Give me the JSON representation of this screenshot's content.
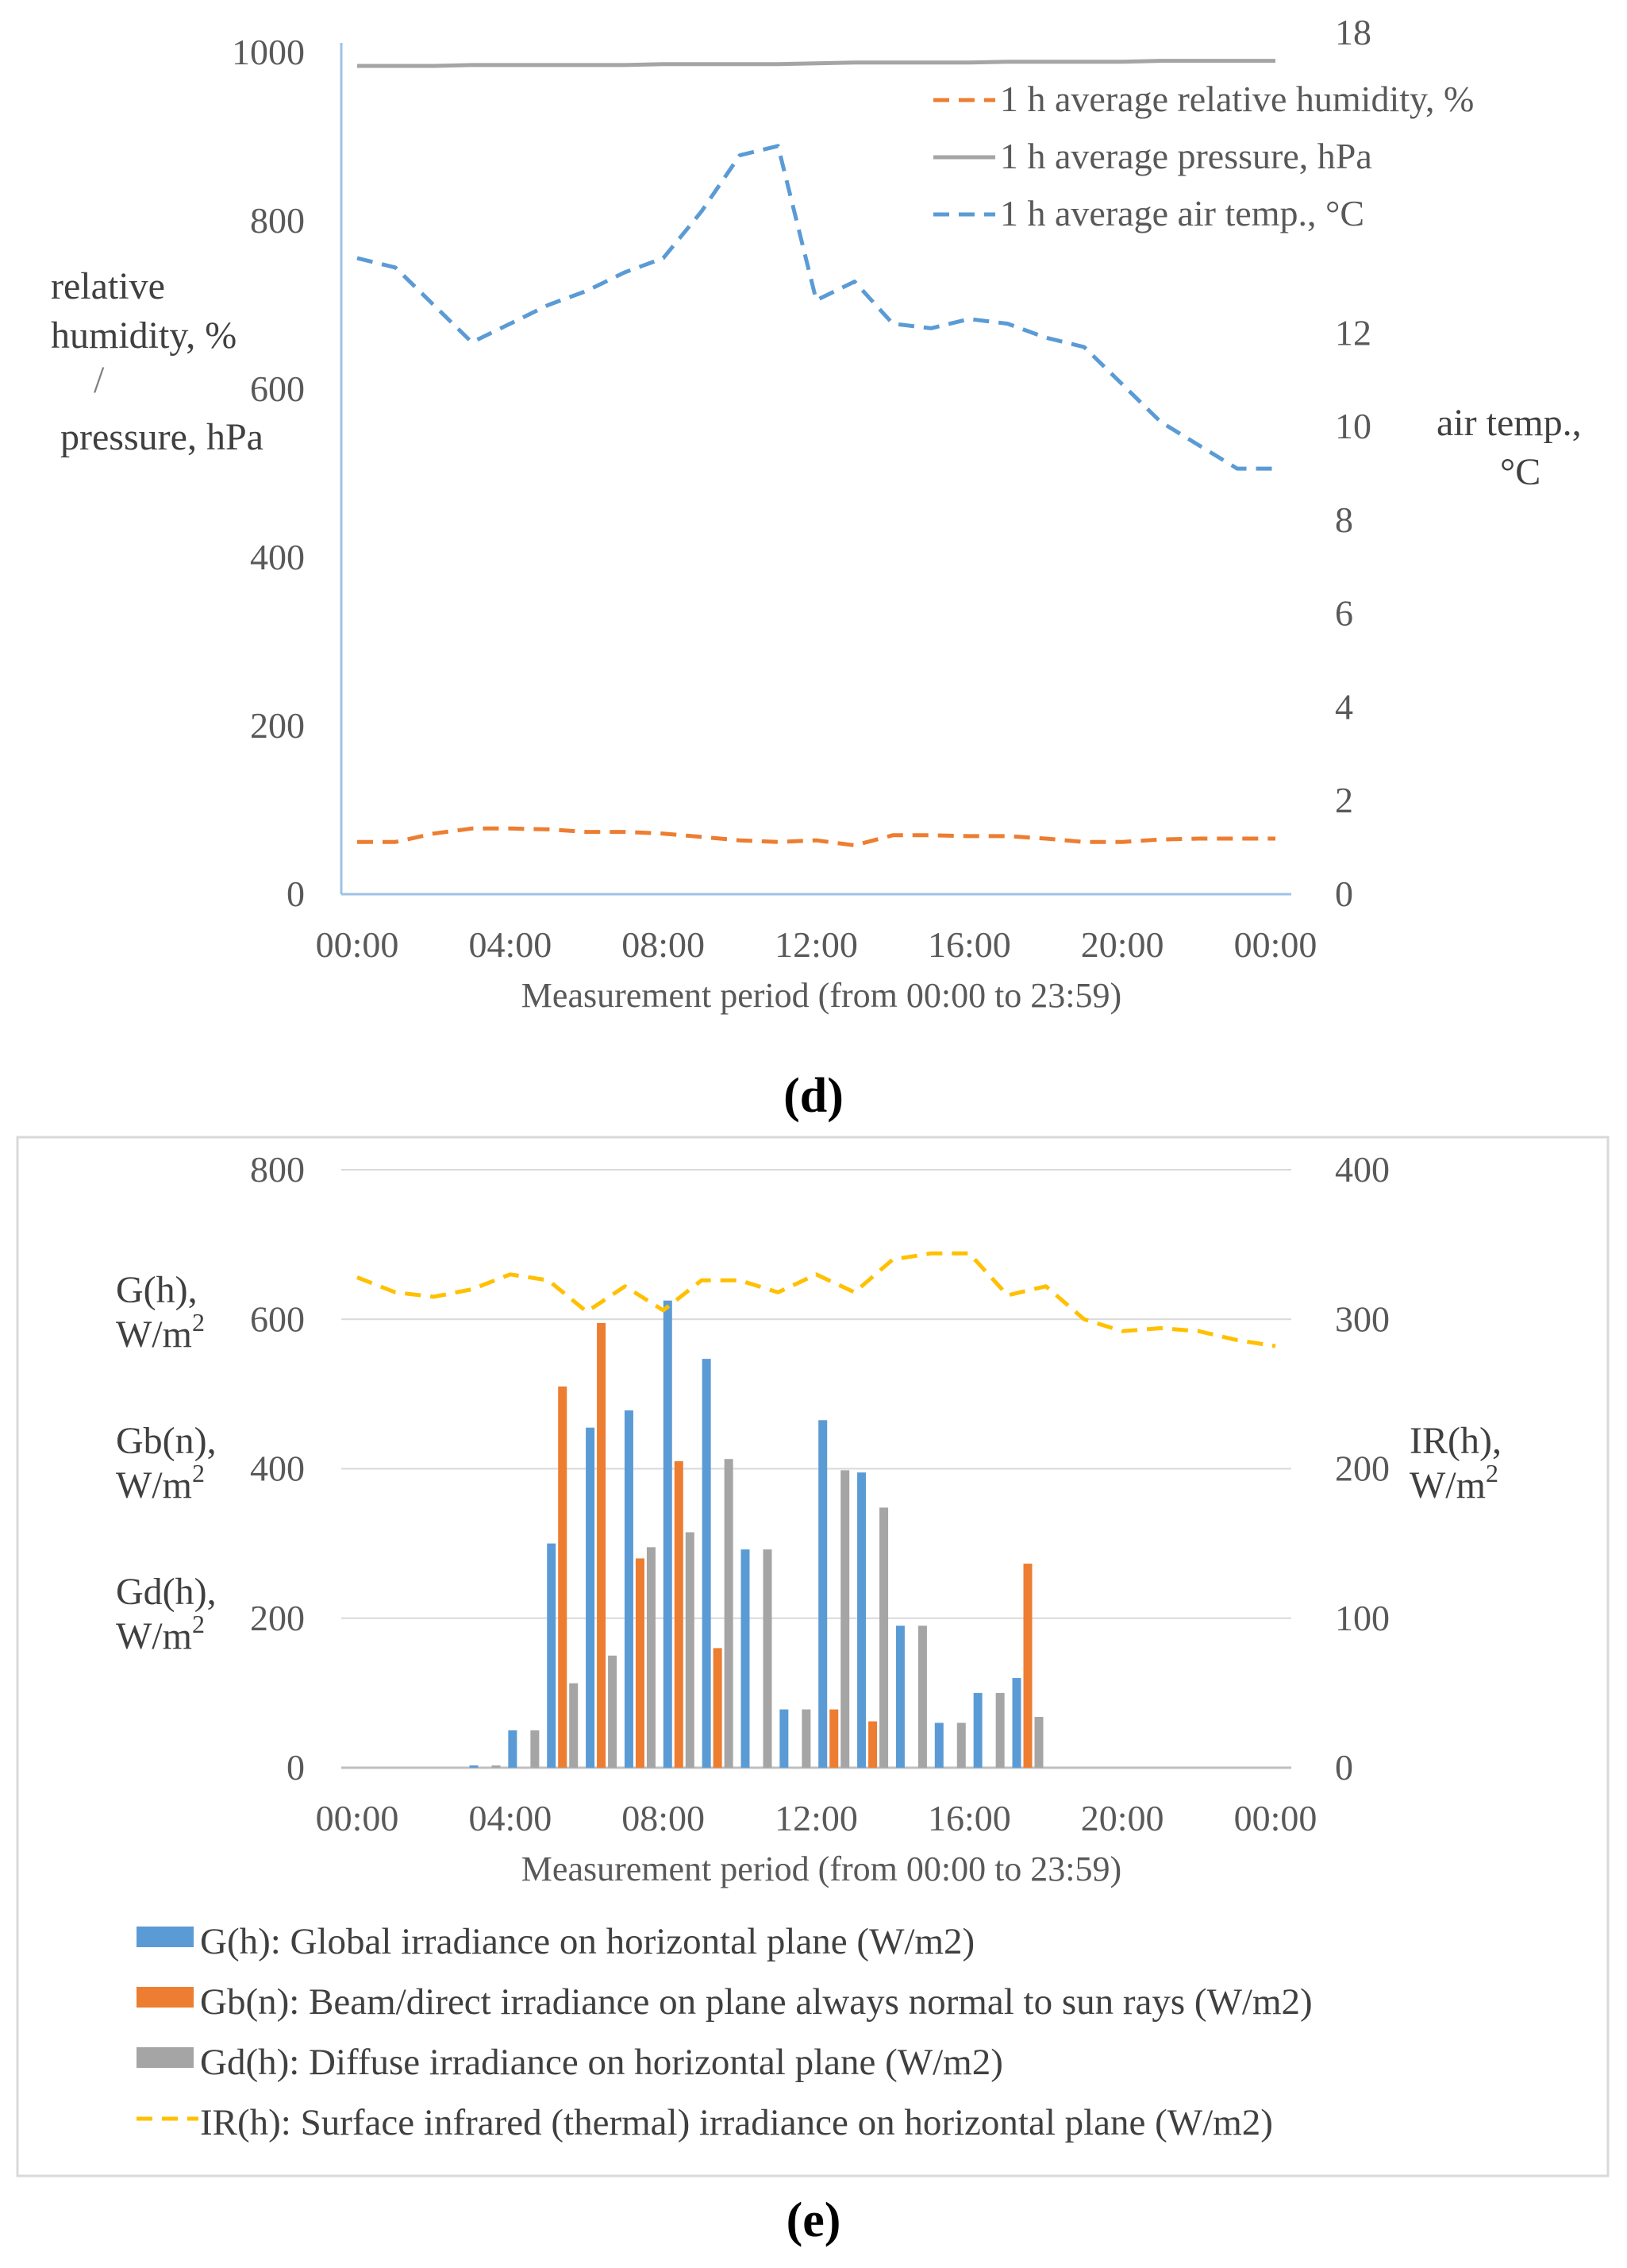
{
  "chart_data": [
    {
      "panel": "d",
      "type": "line",
      "x": [
        "00:00",
        "01:00",
        "02:00",
        "03:00",
        "04:00",
        "05:00",
        "06:00",
        "07:00",
        "08:00",
        "09:00",
        "10:00",
        "11:00",
        "12:00",
        "13:00",
        "14:00",
        "15:00",
        "16:00",
        "17:00",
        "18:00",
        "19:00",
        "20:00",
        "21:00",
        "22:00",
        "23:00",
        "00:00"
      ],
      "x_tick_labels": [
        "00:00",
        "04:00",
        "08:00",
        "12:00",
        "16:00",
        "20:00",
        "00:00"
      ],
      "xlabel": "Measurement period (from 00:00 to 23:59)",
      "ylabel_left": [
        "relative",
        "humidity, %",
        "/",
        "pressure, hPa"
      ],
      "ylabel_right": [
        "air temp.,",
        "°C"
      ],
      "y_left_ticks": [
        "0",
        "200",
        "400",
        "600",
        "800",
        "1000"
      ],
      "y_right_ticks": [
        "0",
        "2",
        "4",
        "6",
        "8",
        "10",
        "12",
        "18"
      ],
      "ylim_left": [
        0,
        1000
      ],
      "ylim_right": [
        0,
        18
      ],
      "series": [
        {
          "name": "1 h average relative humidity, %",
          "axis": "left",
          "style": "dashed",
          "color": "#ED7D31",
          "values": [
            62,
            62,
            72,
            78,
            78,
            77,
            74,
            74,
            72,
            68,
            64,
            62,
            64,
            58,
            70,
            70,
            69,
            69,
            66,
            62,
            62,
            65,
            66,
            66,
            66
          ]
        },
        {
          "name": "1 h average pressure, hPa",
          "axis": "left",
          "style": "solid",
          "color": "#A5A5A5",
          "values": [
            984,
            984,
            984,
            985,
            985,
            985,
            985,
            985,
            986,
            986,
            986,
            986,
            987,
            988,
            988,
            988,
            988,
            989,
            989,
            989,
            989,
            990,
            990,
            990,
            990
          ]
        },
        {
          "name": "1 h average air temp., °C",
          "axis": "right",
          "style": "dashed",
          "color": "#5B9BD5",
          "values": [
            13.6,
            13.4,
            12.6,
            11.8,
            12.2,
            12.6,
            12.9,
            13.3,
            13.6,
            14.6,
            15.8,
            16.0,
            12.7,
            13.1,
            12.2,
            12.1,
            12.3,
            12.2,
            11.9,
            11.7,
            10.9,
            10.1,
            9.6,
            9.1,
            9.1
          ]
        }
      ],
      "subtitle": "(d)"
    },
    {
      "panel": "e",
      "type": "bar",
      "x_tick_labels": [
        "00:00",
        "04:00",
        "08:00",
        "12:00",
        "16:00",
        "20:00",
        "00:00"
      ],
      "xlabel": "Measurement period (from 00:00 to 23:59)",
      "ylabel_left": [
        {
          "main": "G(h),",
          "unit": "W/m",
          "sup": "2"
        },
        {
          "main": "Gb(n),",
          "unit": "W/m",
          "sup": "2"
        },
        {
          "main": "Gd(h),",
          "unit": "W/m",
          "sup": "2"
        }
      ],
      "ylabel_right": {
        "main": "IR(h),",
        "unit": "W/m",
        "sup": "2"
      },
      "y_left_ticks": [
        "0",
        "200",
        "400",
        "600",
        "800"
      ],
      "y_right_ticks": [
        "0",
        "100",
        "200",
        "300",
        "400"
      ],
      "ylim_left": [
        0,
        800
      ],
      "ylim_right": [
        0,
        400
      ],
      "series": [
        {
          "name": "G(h): Global irradiance on horizontal plane (W/m2)",
          "kind": "bar",
          "axis": "left",
          "color": "#5B9BD5",
          "values": [
            0,
            0,
            0,
            3,
            50,
            300,
            455,
            478,
            625,
            547,
            292,
            78,
            465,
            395,
            190,
            60,
            100,
            120,
            0,
            0,
            0,
            0,
            0,
            0
          ]
        },
        {
          "name": "Gb(n): Beam/direct irradiance on plane always normal to sun rays (W/m2)",
          "kind": "bar",
          "axis": "left",
          "color": "#ED7D31",
          "values": [
            0,
            0,
            0,
            0,
            0,
            510,
            595,
            280,
            410,
            160,
            0,
            0,
            78,
            62,
            0,
            0,
            0,
            273,
            0,
            0,
            0,
            0,
            0,
            0
          ]
        },
        {
          "name": "Gd(h): Diffuse irradiance on horizontal plane (W/m2)",
          "kind": "bar",
          "axis": "left",
          "color": "#A5A5A5",
          "values": [
            0,
            0,
            0,
            3,
            50,
            113,
            150,
            295,
            315,
            413,
            292,
            78,
            398,
            348,
            190,
            60,
            100,
            68,
            0,
            0,
            0,
            0,
            0,
            0
          ]
        },
        {
          "name": "IR(h): Surface infrared (thermal) irradiance on horizontal plane (W/m2)",
          "kind": "line",
          "axis": "right",
          "style": "dashed",
          "color": "#FFC000",
          "values": [
            328,
            318,
            315,
            320,
            330,
            326,
            305,
            322,
            306,
            326,
            326,
            318,
            330,
            318,
            340,
            344,
            344,
            316,
            322,
            300,
            292,
            294,
            292,
            286,
            282
          ]
        }
      ],
      "subtitle": "(e)"
    }
  ]
}
